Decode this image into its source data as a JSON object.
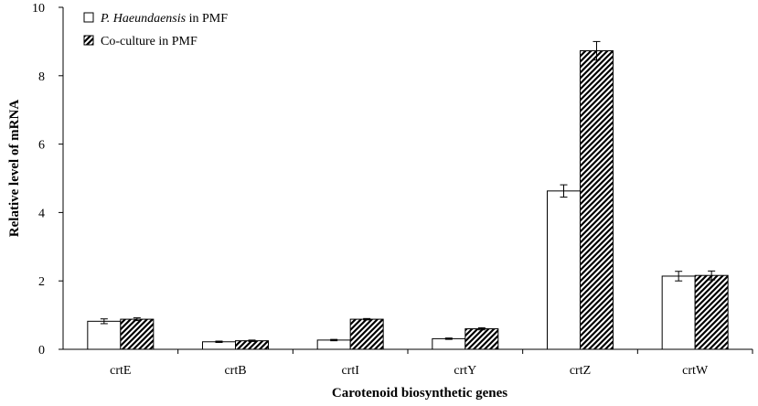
{
  "chart_data": {
    "type": "bar",
    "categories": [
      "crtE",
      "crtB",
      "crtI",
      "crtY",
      "crtZ",
      "crtW"
    ],
    "series": [
      {
        "name": "P. Haeundaensis in PMF",
        "name_parts": [
          {
            "text": "P. Haeundaensis",
            "italic": true
          },
          {
            "text": " in PMF",
            "italic": false
          }
        ],
        "values": [
          0.82,
          0.22,
          0.27,
          0.31,
          4.63,
          2.14
        ],
        "errors": [
          0.07,
          0.02,
          0.02,
          0.02,
          0.18,
          0.14
        ],
        "fill": "#ffffff",
        "pattern": "none"
      },
      {
        "name": "Co-culture in PMF",
        "name_parts": [
          {
            "text": "Co-culture in PMF",
            "italic": false
          }
        ],
        "values": [
          0.88,
          0.25,
          0.88,
          0.6,
          8.73,
          2.16
        ],
        "errors": [
          0.04,
          0.02,
          0.02,
          0.03,
          0.27,
          0.13
        ],
        "fill": "#ffffff",
        "pattern": "diagonal-hatch"
      }
    ],
    "xlabel": "Carotenoid biosynthetic genes",
    "ylabel": "Relative level of mRNA",
    "ylim": [
      0,
      10
    ],
    "yticks": [
      0,
      2,
      4,
      6,
      8,
      10
    ],
    "grid": false,
    "legend_position": "top-left",
    "colors": {
      "stroke": "#000000",
      "hatch": "#000000",
      "background": "#ffffff"
    }
  }
}
